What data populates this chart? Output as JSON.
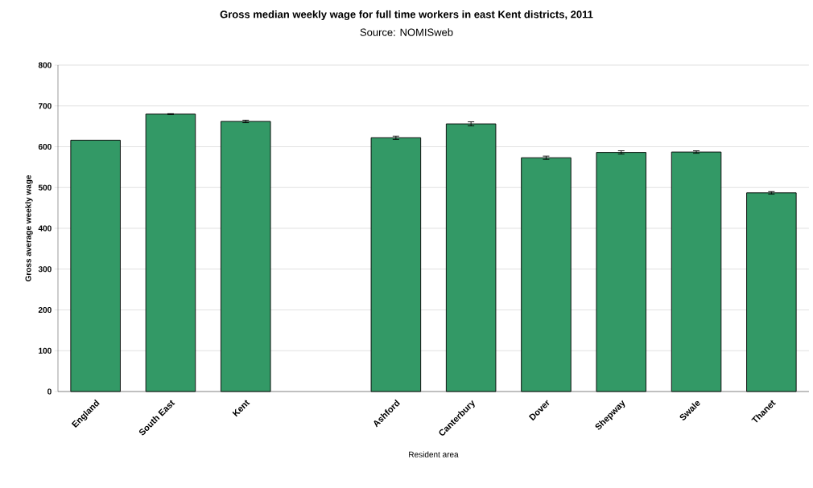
{
  "chart_data": {
    "type": "bar",
    "title": "Gross median weekly wage for full time workers in east Kent districts, 2011",
    "subtitle": "Source: NOMISweb",
    "xlabel": "Resident area",
    "ylabel": "Gross average weekly wage",
    "categories": [
      "England",
      "South East",
      "Kent",
      null,
      "Ashford",
      "Canterbury",
      "Dover",
      "Shepway",
      "Swale",
      "Thanet"
    ],
    "values": [
      616,
      680,
      662,
      null,
      622,
      656,
      573,
      586,
      587,
      487
    ],
    "errors": [
      null,
      1,
      3,
      null,
      4,
      5,
      4,
      4,
      3,
      3
    ],
    "color": "#339966",
    "ylim": [
      0,
      800
    ],
    "yticks": [
      0,
      100,
      200,
      300,
      400,
      500,
      600,
      700,
      800
    ],
    "grid": "y"
  }
}
